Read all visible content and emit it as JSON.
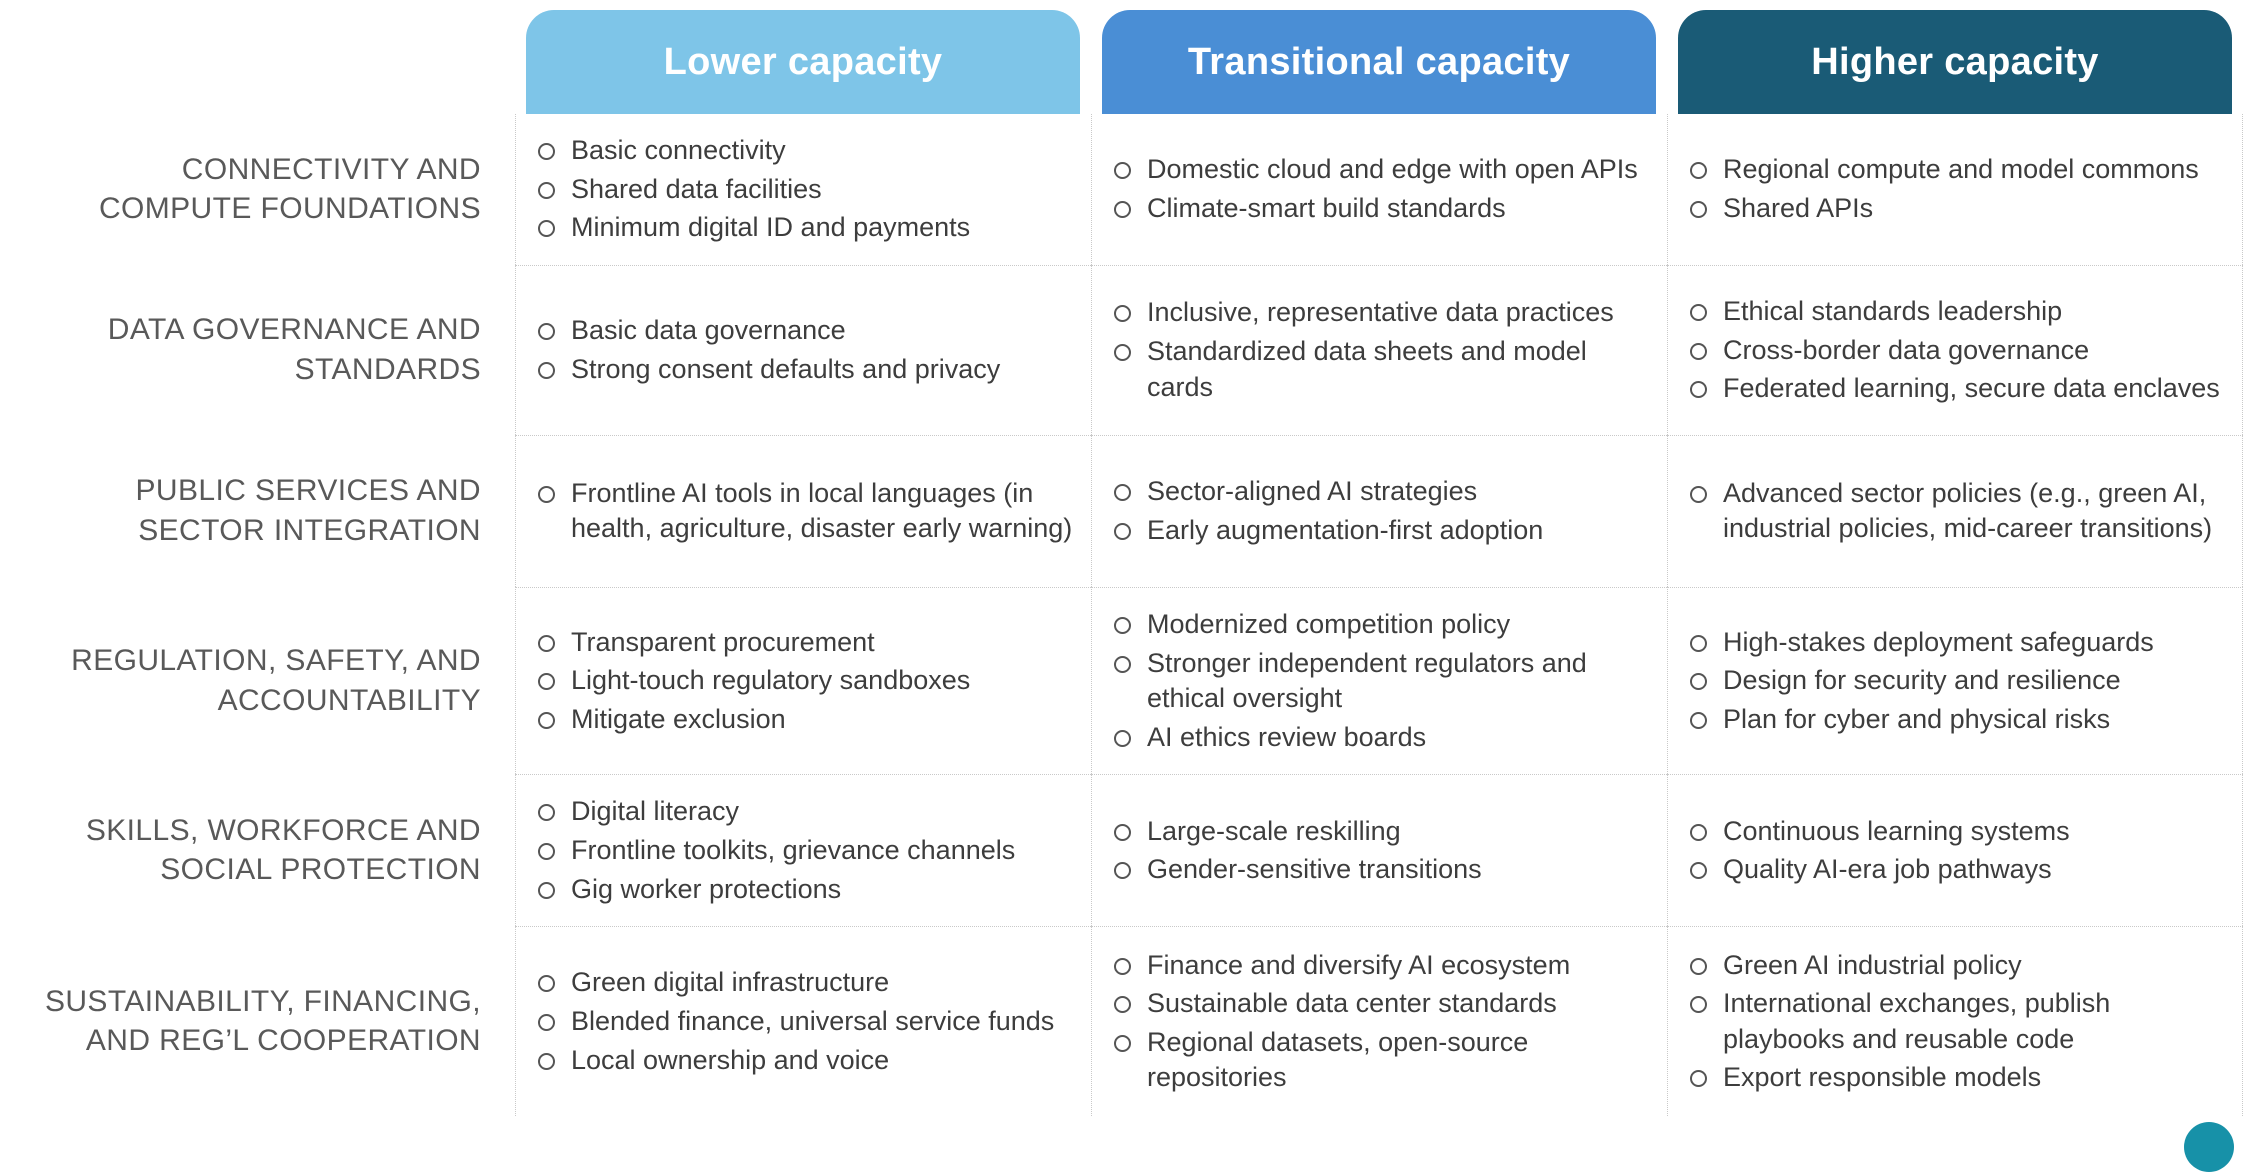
{
  "columns": [
    {
      "label": "Lower capacity",
      "color": "#7EC5E8"
    },
    {
      "label": "Transitional capacity",
      "color": "#4A8ED5"
    },
    {
      "label": "Higher capacity",
      "color": "#1A5B76"
    }
  ],
  "accent": {
    "corner_dot_color": "#1791A8"
  },
  "rows": [
    {
      "label": "CONNECTIVITY AND\nCOMPUTE FOUNDATIONS",
      "lower": [
        "Basic connectivity",
        "Shared data facilities",
        "Minimum digital ID and payments"
      ],
      "mid": [
        "Domestic cloud and edge with open APIs",
        "Climate-smart build standards"
      ],
      "high": [
        "Regional compute and model commons",
        "Shared APIs"
      ]
    },
    {
      "label": "DATA GOVERNANCE AND\nSTANDARDS",
      "lower": [
        "Basic data governance",
        "Strong consent defaults and privacy"
      ],
      "mid": [
        "Inclusive, representative data practices",
        "Standardized data sheets and model cards"
      ],
      "high": [
        "Ethical standards leadership",
        "Cross-border data governance",
        "Federated learning, secure data enclaves"
      ]
    },
    {
      "label": "PUBLIC SERVICES AND\nSECTOR INTEGRATION",
      "lower": [
        "Frontline AI tools in local languages (in health, agriculture, disaster early warning)"
      ],
      "mid": [
        "Sector-aligned AI strategies",
        "Early augmentation-first adoption"
      ],
      "high": [
        "Advanced sector policies (e.g., green AI, industrial policies, mid-career transitions)"
      ]
    },
    {
      "label": "REGULATION, SAFETY, AND\nACCOUNTABILITY",
      "lower": [
        "Transparent procurement",
        "Light-touch regulatory sandboxes",
        "Mitigate exclusion"
      ],
      "mid": [
        "Modernized competition policy",
        "Stronger independent regulators and ethical oversight",
        "AI ethics review boards"
      ],
      "high": [
        "High-stakes deployment safeguards",
        "Design for security and resilience",
        "Plan for cyber and physical risks"
      ]
    },
    {
      "label": "SKILLS, WORKFORCE AND\nSOCIAL PROTECTION",
      "lower": [
        "Digital literacy",
        "Frontline toolkits, grievance channels",
        "Gig worker protections"
      ],
      "mid": [
        "Large-scale reskilling",
        "Gender-sensitive transitions"
      ],
      "high": [
        "Continuous learning systems",
        "Quality AI-era job pathways"
      ]
    },
    {
      "label": "SUSTAINABILITY, FINANCING,\nAND REG’L COOPERATION",
      "lower": [
        "Green digital infrastructure",
        "Blended finance, universal service funds",
        "Local ownership and voice"
      ],
      "mid": [
        "Finance and diversify AI ecosystem",
        "Sustainable data center standards",
        "Regional datasets, open-source repositories"
      ],
      "high": [
        "Green AI industrial policy",
        "International exchanges, publish playbooks and reusable code",
        "Export responsible models"
      ]
    }
  ]
}
